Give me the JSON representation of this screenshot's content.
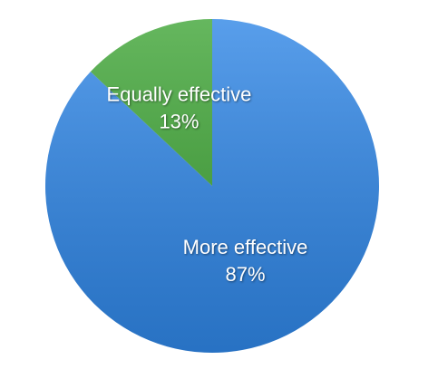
{
  "chart_data": {
    "type": "pie",
    "categories": [
      "More effective",
      "Equally effective"
    ],
    "values": [
      87,
      13
    ],
    "value_labels": [
      "87%",
      "13%"
    ],
    "colors": [
      "#2f86e6",
      "#3fa536"
    ]
  }
}
